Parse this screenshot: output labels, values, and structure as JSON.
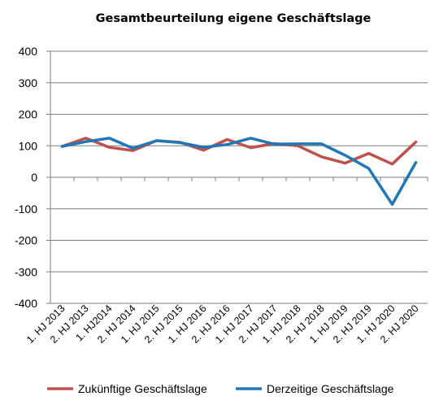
{
  "chart_data": {
    "type": "line",
    "title": "Gesamtbeurteilung eigene Geschäftslage",
    "categories": [
      "1. HJ 2013",
      "2. HJ 2013",
      "1. HJ2014",
      "2. HJ 2014",
      "1. HJ 2015",
      "2. HJ 2015",
      "1. HJ 2016",
      "2. HJ 2016",
      "1. HJ 2017",
      "2. HJ 2017",
      "1. HJ 2018",
      "2. HJ 2018",
      "1. HJ 2019",
      "2. HJ 2019",
      "1. HJ 2020",
      "2. HJ 2020"
    ],
    "ylim": [
      -400,
      400
    ],
    "yticks": [
      400,
      300,
      200,
      100,
      0,
      -100,
      -200,
      -300,
      -400
    ],
    "grid": true,
    "legend_position": "bottom",
    "series": [
      {
        "name": "Zukünftige Geschäftslage",
        "color": "#c0504d",
        "values": [
          98,
          124,
          95,
          85,
          116,
          111,
          86,
          120,
          94,
          107,
          100,
          65,
          45,
          76,
          42,
          112
        ]
      },
      {
        "name": "Derzeitige Geschäftslage",
        "color": "#1f77b4",
        "values": [
          98,
          113,
          124,
          92,
          116,
          110,
          95,
          104,
          124,
          105,
          106,
          106,
          70,
          28,
          -86,
          47
        ]
      }
    ]
  }
}
